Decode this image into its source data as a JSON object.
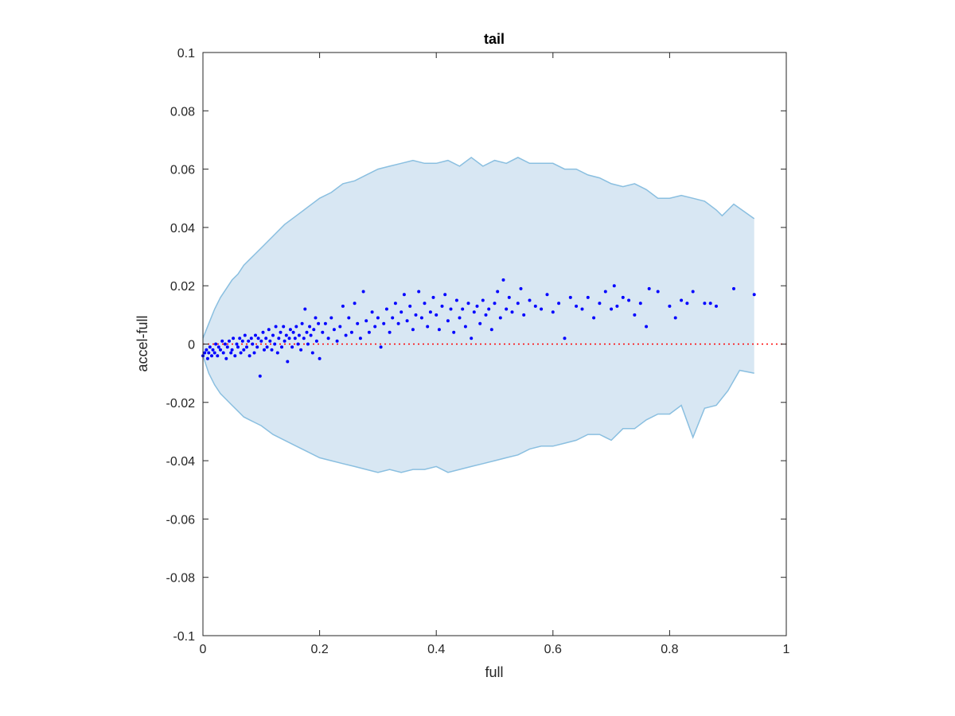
{
  "chart_data": {
    "type": "scatter",
    "title": "tail",
    "xlabel": "full",
    "ylabel": "accel-full",
    "xlim": [
      0,
      1
    ],
    "ylim": [
      -0.1,
      0.1
    ],
    "xticks": [
      0,
      0.2,
      0.4,
      0.6,
      0.8,
      1
    ],
    "xtick_labels": [
      "0",
      "0.2",
      "0.4",
      "0.6",
      "0.8",
      "1"
    ],
    "yticks": [
      -0.1,
      -0.08,
      -0.06,
      -0.04,
      -0.02,
      0,
      0.02,
      0.04,
      0.06,
      0.08,
      0.1
    ],
    "ytick_labels": [
      "-0.1",
      "-0.08",
      "-0.06",
      "-0.04",
      "-0.02",
      "0",
      "0.02",
      "0.04",
      "0.06",
      "0.08",
      "0.1"
    ],
    "grid": false,
    "colors": {
      "band_fill": "#d8e7f3",
      "band_edge": "#8abfe0",
      "points": "#0000ff",
      "zero_line": "#ff0000",
      "axes": "#262626"
    },
    "reference_line": {
      "y": 0,
      "x_start": 0,
      "x_end": 1,
      "style": "dotted"
    },
    "band": {
      "upper": [
        [
          0.0,
          0.002
        ],
        [
          0.01,
          0.007
        ],
        [
          0.02,
          0.012
        ],
        [
          0.03,
          0.016
        ],
        [
          0.04,
          0.019
        ],
        [
          0.05,
          0.022
        ],
        [
          0.06,
          0.024
        ],
        [
          0.07,
          0.027
        ],
        [
          0.08,
          0.029
        ],
        [
          0.09,
          0.031
        ],
        [
          0.1,
          0.033
        ],
        [
          0.12,
          0.037
        ],
        [
          0.14,
          0.041
        ],
        [
          0.16,
          0.044
        ],
        [
          0.18,
          0.047
        ],
        [
          0.2,
          0.05
        ],
        [
          0.22,
          0.052
        ],
        [
          0.24,
          0.055
        ],
        [
          0.26,
          0.056
        ],
        [
          0.28,
          0.058
        ],
        [
          0.3,
          0.06
        ],
        [
          0.32,
          0.061
        ],
        [
          0.34,
          0.062
        ],
        [
          0.36,
          0.063
        ],
        [
          0.38,
          0.062
        ],
        [
          0.4,
          0.062
        ],
        [
          0.42,
          0.063
        ],
        [
          0.44,
          0.061
        ],
        [
          0.46,
          0.064
        ],
        [
          0.48,
          0.061
        ],
        [
          0.5,
          0.063
        ],
        [
          0.52,
          0.062
        ],
        [
          0.54,
          0.064
        ],
        [
          0.56,
          0.062
        ],
        [
          0.58,
          0.062
        ],
        [
          0.6,
          0.062
        ],
        [
          0.62,
          0.06
        ],
        [
          0.64,
          0.06
        ],
        [
          0.66,
          0.058
        ],
        [
          0.68,
          0.057
        ],
        [
          0.7,
          0.055
        ],
        [
          0.72,
          0.054
        ],
        [
          0.74,
          0.055
        ],
        [
          0.76,
          0.053
        ],
        [
          0.78,
          0.05
        ],
        [
          0.8,
          0.05
        ],
        [
          0.82,
          0.051
        ],
        [
          0.84,
          0.05
        ],
        [
          0.86,
          0.049
        ],
        [
          0.88,
          0.046
        ],
        [
          0.89,
          0.044
        ],
        [
          0.91,
          0.048
        ],
        [
          0.945,
          0.043
        ]
      ],
      "lower": [
        [
          0.0,
          -0.004
        ],
        [
          0.01,
          -0.01
        ],
        [
          0.02,
          -0.014
        ],
        [
          0.03,
          -0.017
        ],
        [
          0.04,
          -0.019
        ],
        [
          0.05,
          -0.021
        ],
        [
          0.06,
          -0.023
        ],
        [
          0.07,
          -0.025
        ],
        [
          0.08,
          -0.026
        ],
        [
          0.09,
          -0.027
        ],
        [
          0.1,
          -0.028
        ],
        [
          0.12,
          -0.031
        ],
        [
          0.14,
          -0.033
        ],
        [
          0.16,
          -0.035
        ],
        [
          0.18,
          -0.037
        ],
        [
          0.2,
          -0.039
        ],
        [
          0.22,
          -0.04
        ],
        [
          0.24,
          -0.041
        ],
        [
          0.26,
          -0.042
        ],
        [
          0.28,
          -0.043
        ],
        [
          0.3,
          -0.044
        ],
        [
          0.32,
          -0.043
        ],
        [
          0.34,
          -0.044
        ],
        [
          0.36,
          -0.043
        ],
        [
          0.38,
          -0.043
        ],
        [
          0.4,
          -0.042
        ],
        [
          0.42,
          -0.044
        ],
        [
          0.44,
          -0.043
        ],
        [
          0.46,
          -0.042
        ],
        [
          0.48,
          -0.041
        ],
        [
          0.5,
          -0.04
        ],
        [
          0.52,
          -0.039
        ],
        [
          0.54,
          -0.038
        ],
        [
          0.56,
          -0.036
        ],
        [
          0.58,
          -0.035
        ],
        [
          0.6,
          -0.035
        ],
        [
          0.62,
          -0.034
        ],
        [
          0.64,
          -0.033
        ],
        [
          0.66,
          -0.031
        ],
        [
          0.68,
          -0.031
        ],
        [
          0.7,
          -0.033
        ],
        [
          0.72,
          -0.029
        ],
        [
          0.74,
          -0.029
        ],
        [
          0.76,
          -0.026
        ],
        [
          0.78,
          -0.024
        ],
        [
          0.8,
          -0.024
        ],
        [
          0.82,
          -0.021
        ],
        [
          0.84,
          -0.032
        ],
        [
          0.86,
          -0.022
        ],
        [
          0.88,
          -0.021
        ],
        [
          0.9,
          -0.016
        ],
        [
          0.92,
          -0.009
        ],
        [
          0.945,
          -0.01
        ]
      ]
    },
    "points": [
      [
        0.0,
        -0.004
      ],
      [
        0.003,
        -0.003
      ],
      [
        0.006,
        -0.002
      ],
      [
        0.008,
        -0.005
      ],
      [
        0.01,
        -0.003
      ],
      [
        0.012,
        -0.001
      ],
      [
        0.015,
        -0.004
      ],
      [
        0.017,
        -0.002
      ],
      [
        0.02,
        -0.003
      ],
      [
        0.022,
        0.0
      ],
      [
        0.025,
        -0.004
      ],
      [
        0.027,
        -0.001
      ],
      [
        0.03,
        -0.002
      ],
      [
        0.033,
        0.001
      ],
      [
        0.035,
        -0.003
      ],
      [
        0.038,
        0.0
      ],
      [
        0.04,
        -0.005
      ],
      [
        0.042,
        -0.001
      ],
      [
        0.045,
        0.001
      ],
      [
        0.048,
        -0.003
      ],
      [
        0.05,
        -0.002
      ],
      [
        0.052,
        0.002
      ],
      [
        0.055,
        -0.004
      ],
      [
        0.058,
        0.0
      ],
      [
        0.06,
        -0.001
      ],
      [
        0.063,
        0.002
      ],
      [
        0.065,
        -0.003
      ],
      [
        0.068,
        0.001
      ],
      [
        0.07,
        -0.002
      ],
      [
        0.072,
        0.003
      ],
      [
        0.075,
        -0.001
      ],
      [
        0.078,
        0.001
      ],
      [
        0.08,
        -0.004
      ],
      [
        0.083,
        0.002
      ],
      [
        0.085,
        0.0
      ],
      [
        0.088,
        -0.003
      ],
      [
        0.09,
        0.003
      ],
      [
        0.093,
        -0.001
      ],
      [
        0.095,
        0.002
      ],
      [
        0.098,
        -0.011
      ],
      [
        0.1,
        0.001
      ],
      [
        0.103,
        0.004
      ],
      [
        0.105,
        -0.002
      ],
      [
        0.108,
        0.002
      ],
      [
        0.11,
        -0.001
      ],
      [
        0.113,
        0.005
      ],
      [
        0.115,
        0.001
      ],
      [
        0.118,
        -0.002
      ],
      [
        0.12,
        0.003
      ],
      [
        0.123,
        0.0
      ],
      [
        0.125,
        0.006
      ],
      [
        0.128,
        -0.003
      ],
      [
        0.13,
        0.002
      ],
      [
        0.133,
        0.004
      ],
      [
        0.135,
        -0.001
      ],
      [
        0.138,
        0.006
      ],
      [
        0.14,
        0.001
      ],
      [
        0.143,
        0.003
      ],
      [
        0.145,
        -0.006
      ],
      [
        0.148,
        0.002
      ],
      [
        0.15,
        0.005
      ],
      [
        0.153,
        -0.001
      ],
      [
        0.155,
        0.004
      ],
      [
        0.158,
        0.002
      ],
      [
        0.16,
        0.006
      ],
      [
        0.163,
        0.0
      ],
      [
        0.165,
        0.003
      ],
      [
        0.168,
        -0.002
      ],
      [
        0.17,
        0.007
      ],
      [
        0.173,
        0.002
      ],
      [
        0.175,
        0.012
      ],
      [
        0.178,
        0.004
      ],
      [
        0.18,
        0.0
      ],
      [
        0.183,
        0.006
      ],
      [
        0.185,
        0.003
      ],
      [
        0.188,
        -0.003
      ],
      [
        0.19,
        0.005
      ],
      [
        0.193,
        0.009
      ],
      [
        0.195,
        0.001
      ],
      [
        0.198,
        0.007
      ],
      [
        0.2,
        -0.005
      ],
      [
        0.205,
        0.004
      ],
      [
        0.21,
        0.007
      ],
      [
        0.215,
        0.002
      ],
      [
        0.22,
        0.009
      ],
      [
        0.225,
        0.005
      ],
      [
        0.23,
        0.001
      ],
      [
        0.235,
        0.006
      ],
      [
        0.24,
        0.013
      ],
      [
        0.245,
        0.003
      ],
      [
        0.25,
        0.009
      ],
      [
        0.255,
        0.004
      ],
      [
        0.26,
        0.014
      ],
      [
        0.265,
        0.007
      ],
      [
        0.27,
        0.002
      ],
      [
        0.275,
        0.018
      ],
      [
        0.28,
        0.008
      ],
      [
        0.285,
        0.004
      ],
      [
        0.29,
        0.011
      ],
      [
        0.295,
        0.006
      ],
      [
        0.3,
        0.009
      ],
      [
        0.305,
        -0.001
      ],
      [
        0.31,
        0.007
      ],
      [
        0.315,
        0.012
      ],
      [
        0.32,
        0.004
      ],
      [
        0.325,
        0.009
      ],
      [
        0.33,
        0.014
      ],
      [
        0.335,
        0.007
      ],
      [
        0.34,
        0.011
      ],
      [
        0.345,
        0.017
      ],
      [
        0.35,
        0.008
      ],
      [
        0.355,
        0.013
      ],
      [
        0.36,
        0.005
      ],
      [
        0.365,
        0.01
      ],
      [
        0.37,
        0.018
      ],
      [
        0.375,
        0.009
      ],
      [
        0.38,
        0.014
      ],
      [
        0.385,
        0.006
      ],
      [
        0.39,
        0.011
      ],
      [
        0.395,
        0.016
      ],
      [
        0.4,
        0.01
      ],
      [
        0.405,
        0.005
      ],
      [
        0.41,
        0.013
      ],
      [
        0.415,
        0.017
      ],
      [
        0.42,
        0.008
      ],
      [
        0.425,
        0.012
      ],
      [
        0.43,
        0.004
      ],
      [
        0.435,
        0.015
      ],
      [
        0.44,
        0.009
      ],
      [
        0.445,
        0.012
      ],
      [
        0.45,
        0.006
      ],
      [
        0.455,
        0.014
      ],
      [
        0.46,
        0.002
      ],
      [
        0.465,
        0.011
      ],
      [
        0.47,
        0.013
      ],
      [
        0.475,
        0.007
      ],
      [
        0.48,
        0.015
      ],
      [
        0.485,
        0.01
      ],
      [
        0.49,
        0.012
      ],
      [
        0.495,
        0.005
      ],
      [
        0.5,
        0.014
      ],
      [
        0.505,
        0.018
      ],
      [
        0.51,
        0.009
      ],
      [
        0.515,
        0.022
      ],
      [
        0.52,
        0.012
      ],
      [
        0.525,
        0.016
      ],
      [
        0.53,
        0.011
      ],
      [
        0.54,
        0.014
      ],
      [
        0.545,
        0.019
      ],
      [
        0.55,
        0.01
      ],
      [
        0.56,
        0.015
      ],
      [
        0.57,
        0.013
      ],
      [
        0.58,
        0.012
      ],
      [
        0.59,
        0.017
      ],
      [
        0.6,
        0.011
      ],
      [
        0.61,
        0.014
      ],
      [
        0.62,
        0.002
      ],
      [
        0.63,
        0.016
      ],
      [
        0.64,
        0.013
      ],
      [
        0.65,
        0.012
      ],
      [
        0.66,
        0.016
      ],
      [
        0.67,
        0.009
      ],
      [
        0.68,
        0.014
      ],
      [
        0.69,
        0.018
      ],
      [
        0.7,
        0.012
      ],
      [
        0.705,
        0.02
      ],
      [
        0.71,
        0.013
      ],
      [
        0.72,
        0.016
      ],
      [
        0.73,
        0.015
      ],
      [
        0.74,
        0.01
      ],
      [
        0.75,
        0.014
      ],
      [
        0.76,
        0.006
      ],
      [
        0.765,
        0.019
      ],
      [
        0.78,
        0.018
      ],
      [
        0.8,
        0.013
      ],
      [
        0.81,
        0.009
      ],
      [
        0.82,
        0.015
      ],
      [
        0.83,
        0.014
      ],
      [
        0.84,
        0.018
      ],
      [
        0.86,
        0.014
      ],
      [
        0.87,
        0.014
      ],
      [
        0.88,
        0.013
      ],
      [
        0.91,
        0.019
      ],
      [
        0.945,
        0.017
      ]
    ]
  }
}
